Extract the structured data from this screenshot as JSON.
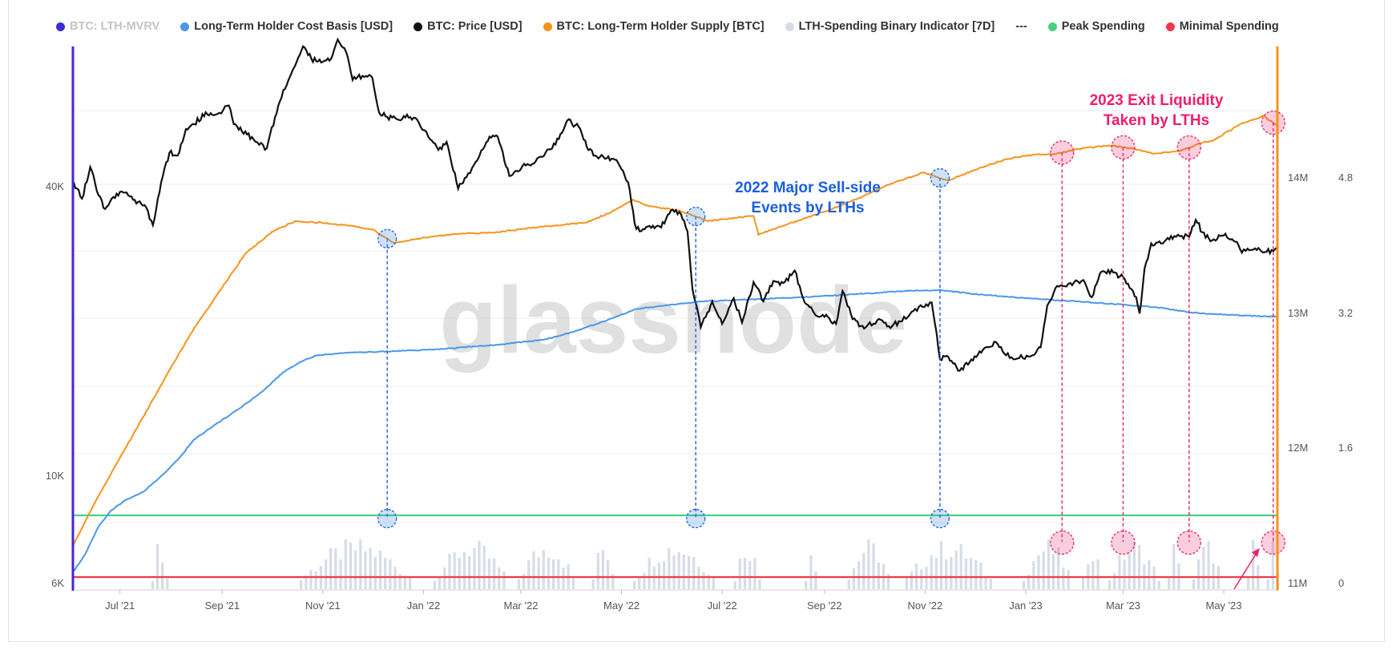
{
  "legend": [
    {
      "label": "BTC: LTH-MVRV",
      "color": "#3d2bd6",
      "dim": true
    },
    {
      "label": "Long-Term Holder Cost Basis [USD]",
      "color": "#4a97ea",
      "dim": false
    },
    {
      "label": "BTC: Price [USD]",
      "color": "#111111",
      "dim": false
    },
    {
      "label": "BTC: Long-Term Holder Supply [BTC]",
      "color": "#f7931a",
      "dim": false
    },
    {
      "label": "LTH-Spending Binary Indicator [7D]",
      "color": "#d6dde6",
      "dim": false
    },
    {
      "label": "---",
      "color": "",
      "dim": false
    },
    {
      "label": "Peak Spending",
      "color": "#4cd080",
      "dim": false
    },
    {
      "label": "Minimal Spending",
      "color": "#f0384a",
      "dim": false
    }
  ],
  "watermark": "glassnode",
  "colors": {
    "price": "#111111",
    "cost_basis": "#4a97ea",
    "supply": "#f7931a",
    "bars": "#d6dde6",
    "peak": "#4cd080",
    "minimal": "#f0384a",
    "left_axis": "#4a22d8",
    "right_axis": "#f7931a",
    "blue_marker": "#1a5fe0",
    "pink_marker": "#ee1f6a"
  },
  "annotations": {
    "blue": [
      "2022 Major Sell-side",
      "Events by LTHs"
    ],
    "pink": [
      "2023 Exit Liquidity",
      "Taken by LTHs"
    ]
  },
  "chart_data": {
    "type": "line",
    "x_ticks": [
      "Jul '21",
      "Sep '21",
      "Nov '21",
      "Jan '22",
      "Mar '22",
      "May '22",
      "Jul '22",
      "Sep '22",
      "Nov '22",
      "Jan '23",
      "Mar '23",
      "May '23"
    ],
    "x_tick_dates": [
      "2021-07-01",
      "2021-09-01",
      "2021-11-01",
      "2022-01-01",
      "2022-03-01",
      "2022-05-01",
      "2022-07-01",
      "2022-09-01",
      "2022-11-01",
      "2023-01-01",
      "2023-03-01",
      "2023-05-01"
    ],
    "x_range": [
      "2021-06-03",
      "2023-06-03"
    ],
    "y_left": {
      "scale": "log",
      "ticks": [
        {
          "label": "6K",
          "value": 6000
        },
        {
          "label": "10K",
          "value": 10000
        },
        {
          "label": "40K",
          "value": 40000
        }
      ],
      "range": [
        6000,
        65000
      ]
    },
    "y_supply": {
      "ticks": [
        {
          "label": "11M",
          "value": 11000000
        },
        {
          "label": "12M",
          "value": 12000000
        },
        {
          "label": "13M",
          "value": 13000000
        },
        {
          "label": "14M",
          "value": 14000000
        }
      ],
      "range": [
        11000000,
        15000000
      ]
    },
    "y_mvrv": {
      "ticks": [
        {
          "label": "0",
          "value": 0
        },
        {
          "label": "1.6",
          "value": 1.6
        },
        {
          "label": "3.2",
          "value": 3.2
        },
        {
          "label": "4.8",
          "value": 4.8
        }
      ],
      "range": [
        0,
        6.4
      ]
    },
    "peak_spending_level": 0.77,
    "minimal_spending_level": 0.08,
    "series": [
      {
        "name": "BTC: Price [USD]",
        "axis": "left",
        "points": [
          [
            "2021-06-03",
            36000
          ],
          [
            "2021-06-08",
            33500
          ],
          [
            "2021-06-13",
            38500
          ],
          [
            "2021-06-18",
            34000
          ],
          [
            "2021-06-22",
            32000
          ],
          [
            "2021-06-26",
            33500
          ],
          [
            "2021-07-01",
            34500
          ],
          [
            "2021-07-06",
            34000
          ],
          [
            "2021-07-12",
            33000
          ],
          [
            "2021-07-17",
            32200
          ],
          [
            "2021-07-21",
            29800
          ],
          [
            "2021-07-26",
            36000
          ],
          [
            "2021-07-31",
            41000
          ],
          [
            "2021-08-05",
            40500
          ],
          [
            "2021-08-10",
            45500
          ],
          [
            "2021-08-15",
            46500
          ],
          [
            "2021-08-22",
            49000
          ],
          [
            "2021-08-28",
            48500
          ],
          [
            "2021-09-05",
            50500
          ],
          [
            "2021-09-08",
            46500
          ],
          [
            "2021-09-13",
            45000
          ],
          [
            "2021-09-20",
            43500
          ],
          [
            "2021-09-28",
            41800
          ],
          [
            "2021-10-03",
            48000
          ],
          [
            "2021-10-08",
            54000
          ],
          [
            "2021-10-15",
            60000
          ],
          [
            "2021-10-20",
            65500
          ],
          [
            "2021-10-25",
            62000
          ],
          [
            "2021-10-31",
            61000
          ],
          [
            "2021-11-05",
            61500
          ],
          [
            "2021-11-10",
            67500
          ],
          [
            "2021-11-15",
            64000
          ],
          [
            "2021-11-19",
            56500
          ],
          [
            "2021-11-25",
            57500
          ],
          [
            "2021-12-01",
            57000
          ],
          [
            "2021-12-05",
            49000
          ],
          [
            "2021-12-10",
            48000
          ],
          [
            "2021-12-16",
            47500
          ],
          [
            "2021-12-22",
            48500
          ],
          [
            "2021-12-28",
            47500
          ],
          [
            "2022-01-05",
            43500
          ],
          [
            "2022-01-10",
            41500
          ],
          [
            "2022-01-15",
            43000
          ],
          [
            "2022-01-22",
            35000
          ],
          [
            "2022-01-27",
            36800
          ],
          [
            "2022-02-05",
            41400
          ],
          [
            "2022-02-10",
            44000
          ],
          [
            "2022-02-15",
            44000
          ],
          [
            "2022-02-22",
            37000
          ],
          [
            "2022-02-27",
            37800
          ],
          [
            "2022-03-05",
            39000
          ],
          [
            "2022-03-10",
            39500
          ],
          [
            "2022-03-16",
            41000
          ],
          [
            "2022-03-22",
            42500
          ],
          [
            "2022-03-29",
            47200
          ],
          [
            "2022-04-05",
            46000
          ],
          [
            "2022-04-10",
            42000
          ],
          [
            "2022-04-15",
            40500
          ],
          [
            "2022-04-22",
            40000
          ],
          [
            "2022-04-28",
            39700
          ],
          [
            "2022-05-05",
            36000
          ],
          [
            "2022-05-09",
            30000
          ],
          [
            "2022-05-12",
            29000
          ],
          [
            "2022-05-18",
            29700
          ],
          [
            "2022-05-25",
            29500
          ],
          [
            "2022-05-31",
            31800
          ],
          [
            "2022-06-06",
            31300
          ],
          [
            "2022-06-10",
            29000
          ],
          [
            "2022-06-13",
            22500
          ],
          [
            "2022-06-18",
            19000
          ],
          [
            "2022-06-25",
            21300
          ],
          [
            "2022-07-01",
            19300
          ],
          [
            "2022-07-08",
            21600
          ],
          [
            "2022-07-13",
            19400
          ],
          [
            "2022-07-20",
            23200
          ],
          [
            "2022-07-26",
            21300
          ],
          [
            "2022-08-01",
            23300
          ],
          [
            "2022-08-07",
            23100
          ],
          [
            "2022-08-14",
            24400
          ],
          [
            "2022-08-20",
            21200
          ],
          [
            "2022-08-27",
            20000
          ],
          [
            "2022-09-03",
            19900
          ],
          [
            "2022-09-08",
            19300
          ],
          [
            "2022-09-12",
            22300
          ],
          [
            "2022-09-18",
            19700
          ],
          [
            "2022-09-25",
            18900
          ],
          [
            "2022-10-03",
            19600
          ],
          [
            "2022-10-10",
            19100
          ],
          [
            "2022-10-17",
            19500
          ],
          [
            "2022-10-26",
            20600
          ],
          [
            "2022-11-05",
            21200
          ],
          [
            "2022-11-08",
            18500
          ],
          [
            "2022-11-10",
            16500
          ],
          [
            "2022-11-15",
            16700
          ],
          [
            "2022-11-21",
            15700
          ],
          [
            "2022-11-28",
            16300
          ],
          [
            "2022-12-05",
            17000
          ],
          [
            "2022-12-14",
            17800
          ],
          [
            "2022-12-20",
            16800
          ],
          [
            "2022-12-28",
            16600
          ],
          [
            "2023-01-05",
            16800
          ],
          [
            "2023-01-10",
            17400
          ],
          [
            "2023-01-14",
            20900
          ],
          [
            "2023-01-20",
            22800
          ],
          [
            "2023-01-28",
            23100
          ],
          [
            "2023-02-05",
            23400
          ],
          [
            "2023-02-10",
            21700
          ],
          [
            "2023-02-16",
            24300
          ],
          [
            "2023-02-23",
            24200
          ],
          [
            "2023-03-02",
            23500
          ],
          [
            "2023-03-09",
            21700
          ],
          [
            "2023-03-11",
            20200
          ],
          [
            "2023-03-14",
            24600
          ],
          [
            "2023-03-18",
            27500
          ],
          [
            "2023-03-25",
            27500
          ],
          [
            "2023-04-01",
            28400
          ],
          [
            "2023-04-10",
            28300
          ],
          [
            "2023-04-14",
            30500
          ],
          [
            "2023-04-20",
            28200
          ],
          [
            "2023-04-25",
            28000
          ],
          [
            "2023-05-02",
            28700
          ],
          [
            "2023-05-08",
            27700
          ],
          [
            "2023-05-12",
            26400
          ],
          [
            "2023-05-20",
            26900
          ],
          [
            "2023-05-27",
            26500
          ],
          [
            "2023-06-01",
            26800
          ],
          [
            "2023-06-03",
            27300
          ]
        ]
      },
      {
        "name": "Long-Term Holder Cost Basis [USD]",
        "axis": "left",
        "points": [
          [
            "2021-06-03",
            6500
          ],
          [
            "2021-06-10",
            7000
          ],
          [
            "2021-06-18",
            7900
          ],
          [
            "2021-06-26",
            8500
          ],
          [
            "2021-07-05",
            8900
          ],
          [
            "2021-07-15",
            9200
          ],
          [
            "2021-07-25",
            9800
          ],
          [
            "2021-08-05",
            10600
          ],
          [
            "2021-08-15",
            11600
          ],
          [
            "2021-08-28",
            12400
          ],
          [
            "2021-09-10",
            13200
          ],
          [
            "2021-09-25",
            14300
          ],
          [
            "2021-10-08",
            15600
          ],
          [
            "2021-10-18",
            16300
          ],
          [
            "2021-10-28",
            16800
          ],
          [
            "2021-11-15",
            17000
          ],
          [
            "2021-12-15",
            17100
          ],
          [
            "2022-01-15",
            17300
          ],
          [
            "2022-02-15",
            17600
          ],
          [
            "2022-03-15",
            18000
          ],
          [
            "2022-04-01",
            18600
          ],
          [
            "2022-04-20",
            19500
          ],
          [
            "2022-05-10",
            20600
          ],
          [
            "2022-05-31",
            21000
          ],
          [
            "2022-06-20",
            21300
          ],
          [
            "2022-07-20",
            21500
          ],
          [
            "2022-08-20",
            21700
          ],
          [
            "2022-09-20",
            22000
          ],
          [
            "2022-10-20",
            22300
          ],
          [
            "2022-11-10",
            22400
          ],
          [
            "2022-12-01",
            22000
          ],
          [
            "2023-01-01",
            21600
          ],
          [
            "2023-02-01",
            21300
          ],
          [
            "2023-03-01",
            21000
          ],
          [
            "2023-03-25",
            20700
          ],
          [
            "2023-04-10",
            20300
          ],
          [
            "2023-05-01",
            20100
          ],
          [
            "2023-06-03",
            19900
          ]
        ]
      },
      {
        "name": "BTC: Long-Term Holder Supply [BTC]",
        "axis": "supply",
        "points": [
          [
            "2021-06-03",
            11330000
          ],
          [
            "2021-06-15",
            11620000
          ],
          [
            "2021-07-01",
            11970000
          ],
          [
            "2021-07-15",
            12270000
          ],
          [
            "2021-08-01",
            12640000
          ],
          [
            "2021-08-15",
            12930000
          ],
          [
            "2021-09-01",
            13230000
          ],
          [
            "2021-09-15",
            13480000
          ],
          [
            "2021-10-01",
            13640000
          ],
          [
            "2021-10-15",
            13720000
          ],
          [
            "2021-10-31",
            13710000
          ],
          [
            "2021-11-15",
            13690000
          ],
          [
            "2021-12-01",
            13660000
          ],
          [
            "2021-12-14",
            13560000
          ],
          [
            "2021-12-28",
            13590000
          ],
          [
            "2022-01-15",
            13620000
          ],
          [
            "2022-02-15",
            13640000
          ],
          [
            "2022-03-15",
            13680000
          ],
          [
            "2022-04-10",
            13710000
          ],
          [
            "2022-04-25",
            13790000
          ],
          [
            "2022-05-08",
            13880000
          ],
          [
            "2022-05-18",
            13830000
          ],
          [
            "2022-06-05",
            13800000
          ],
          [
            "2022-06-14",
            13760000
          ],
          [
            "2022-06-22",
            13720000
          ],
          [
            "2022-07-05",
            13740000
          ],
          [
            "2022-07-20",
            13760000
          ],
          [
            "2022-07-23",
            13620000
          ],
          [
            "2022-08-10",
            13700000
          ],
          [
            "2022-09-01",
            13790000
          ],
          [
            "2022-09-20",
            13880000
          ],
          [
            "2022-10-10",
            13990000
          ],
          [
            "2022-10-31",
            14080000
          ],
          [
            "2022-11-15",
            14020000
          ],
          [
            "2022-12-01",
            14100000
          ],
          [
            "2022-12-20",
            14180000
          ],
          [
            "2023-01-05",
            14210000
          ],
          [
            "2023-01-20",
            14220000
          ],
          [
            "2023-02-05",
            14260000
          ],
          [
            "2023-02-20",
            14280000
          ],
          [
            "2023-03-05",
            14260000
          ],
          [
            "2023-03-20",
            14220000
          ],
          [
            "2023-04-05",
            14240000
          ],
          [
            "2023-04-15",
            14290000
          ],
          [
            "2023-04-25",
            14320000
          ],
          [
            "2023-05-10",
            14430000
          ],
          [
            "2023-05-25",
            14500000
          ],
          [
            "2023-06-01",
            14440000
          ],
          [
            "2023-06-03",
            14430000
          ]
        ]
      }
    ],
    "spending_bars": {
      "name": "LTH-Spending Binary Indicator [7D]",
      "active_ranges": [
        [
          "2021-07-20",
          "2021-07-29"
        ],
        [
          "2021-10-18",
          "2021-12-24"
        ],
        [
          "2022-01-07",
          "2022-02-20"
        ],
        [
          "2022-02-27",
          "2022-04-02"
        ],
        [
          "2022-04-13",
          "2022-04-26"
        ],
        [
          "2022-05-08",
          "2022-06-26"
        ],
        [
          "2022-07-08",
          "2022-07-23"
        ],
        [
          "2022-08-20",
          "2022-08-27"
        ],
        [
          "2022-09-15",
          "2022-10-10"
        ],
        [
          "2022-10-20",
          "2022-12-10"
        ],
        [
          "2022-12-30",
          "2023-01-28"
        ],
        [
          "2023-02-04",
          "2023-02-15"
        ],
        [
          "2023-02-20",
          "2023-03-22"
        ],
        [
          "2023-03-28",
          "2023-04-05"
        ],
        [
          "2023-04-12",
          "2023-04-29"
        ],
        [
          "2023-05-15",
          "2023-05-22"
        ],
        [
          "2023-05-27",
          "2023-06-03"
        ]
      ]
    },
    "markers": {
      "blue": [
        "2021-12-10",
        "2022-06-15",
        "2022-11-10"
      ],
      "pink": [
        "2023-01-23",
        "2023-03-01",
        "2023-04-10",
        "2023-05-31"
      ]
    }
  }
}
